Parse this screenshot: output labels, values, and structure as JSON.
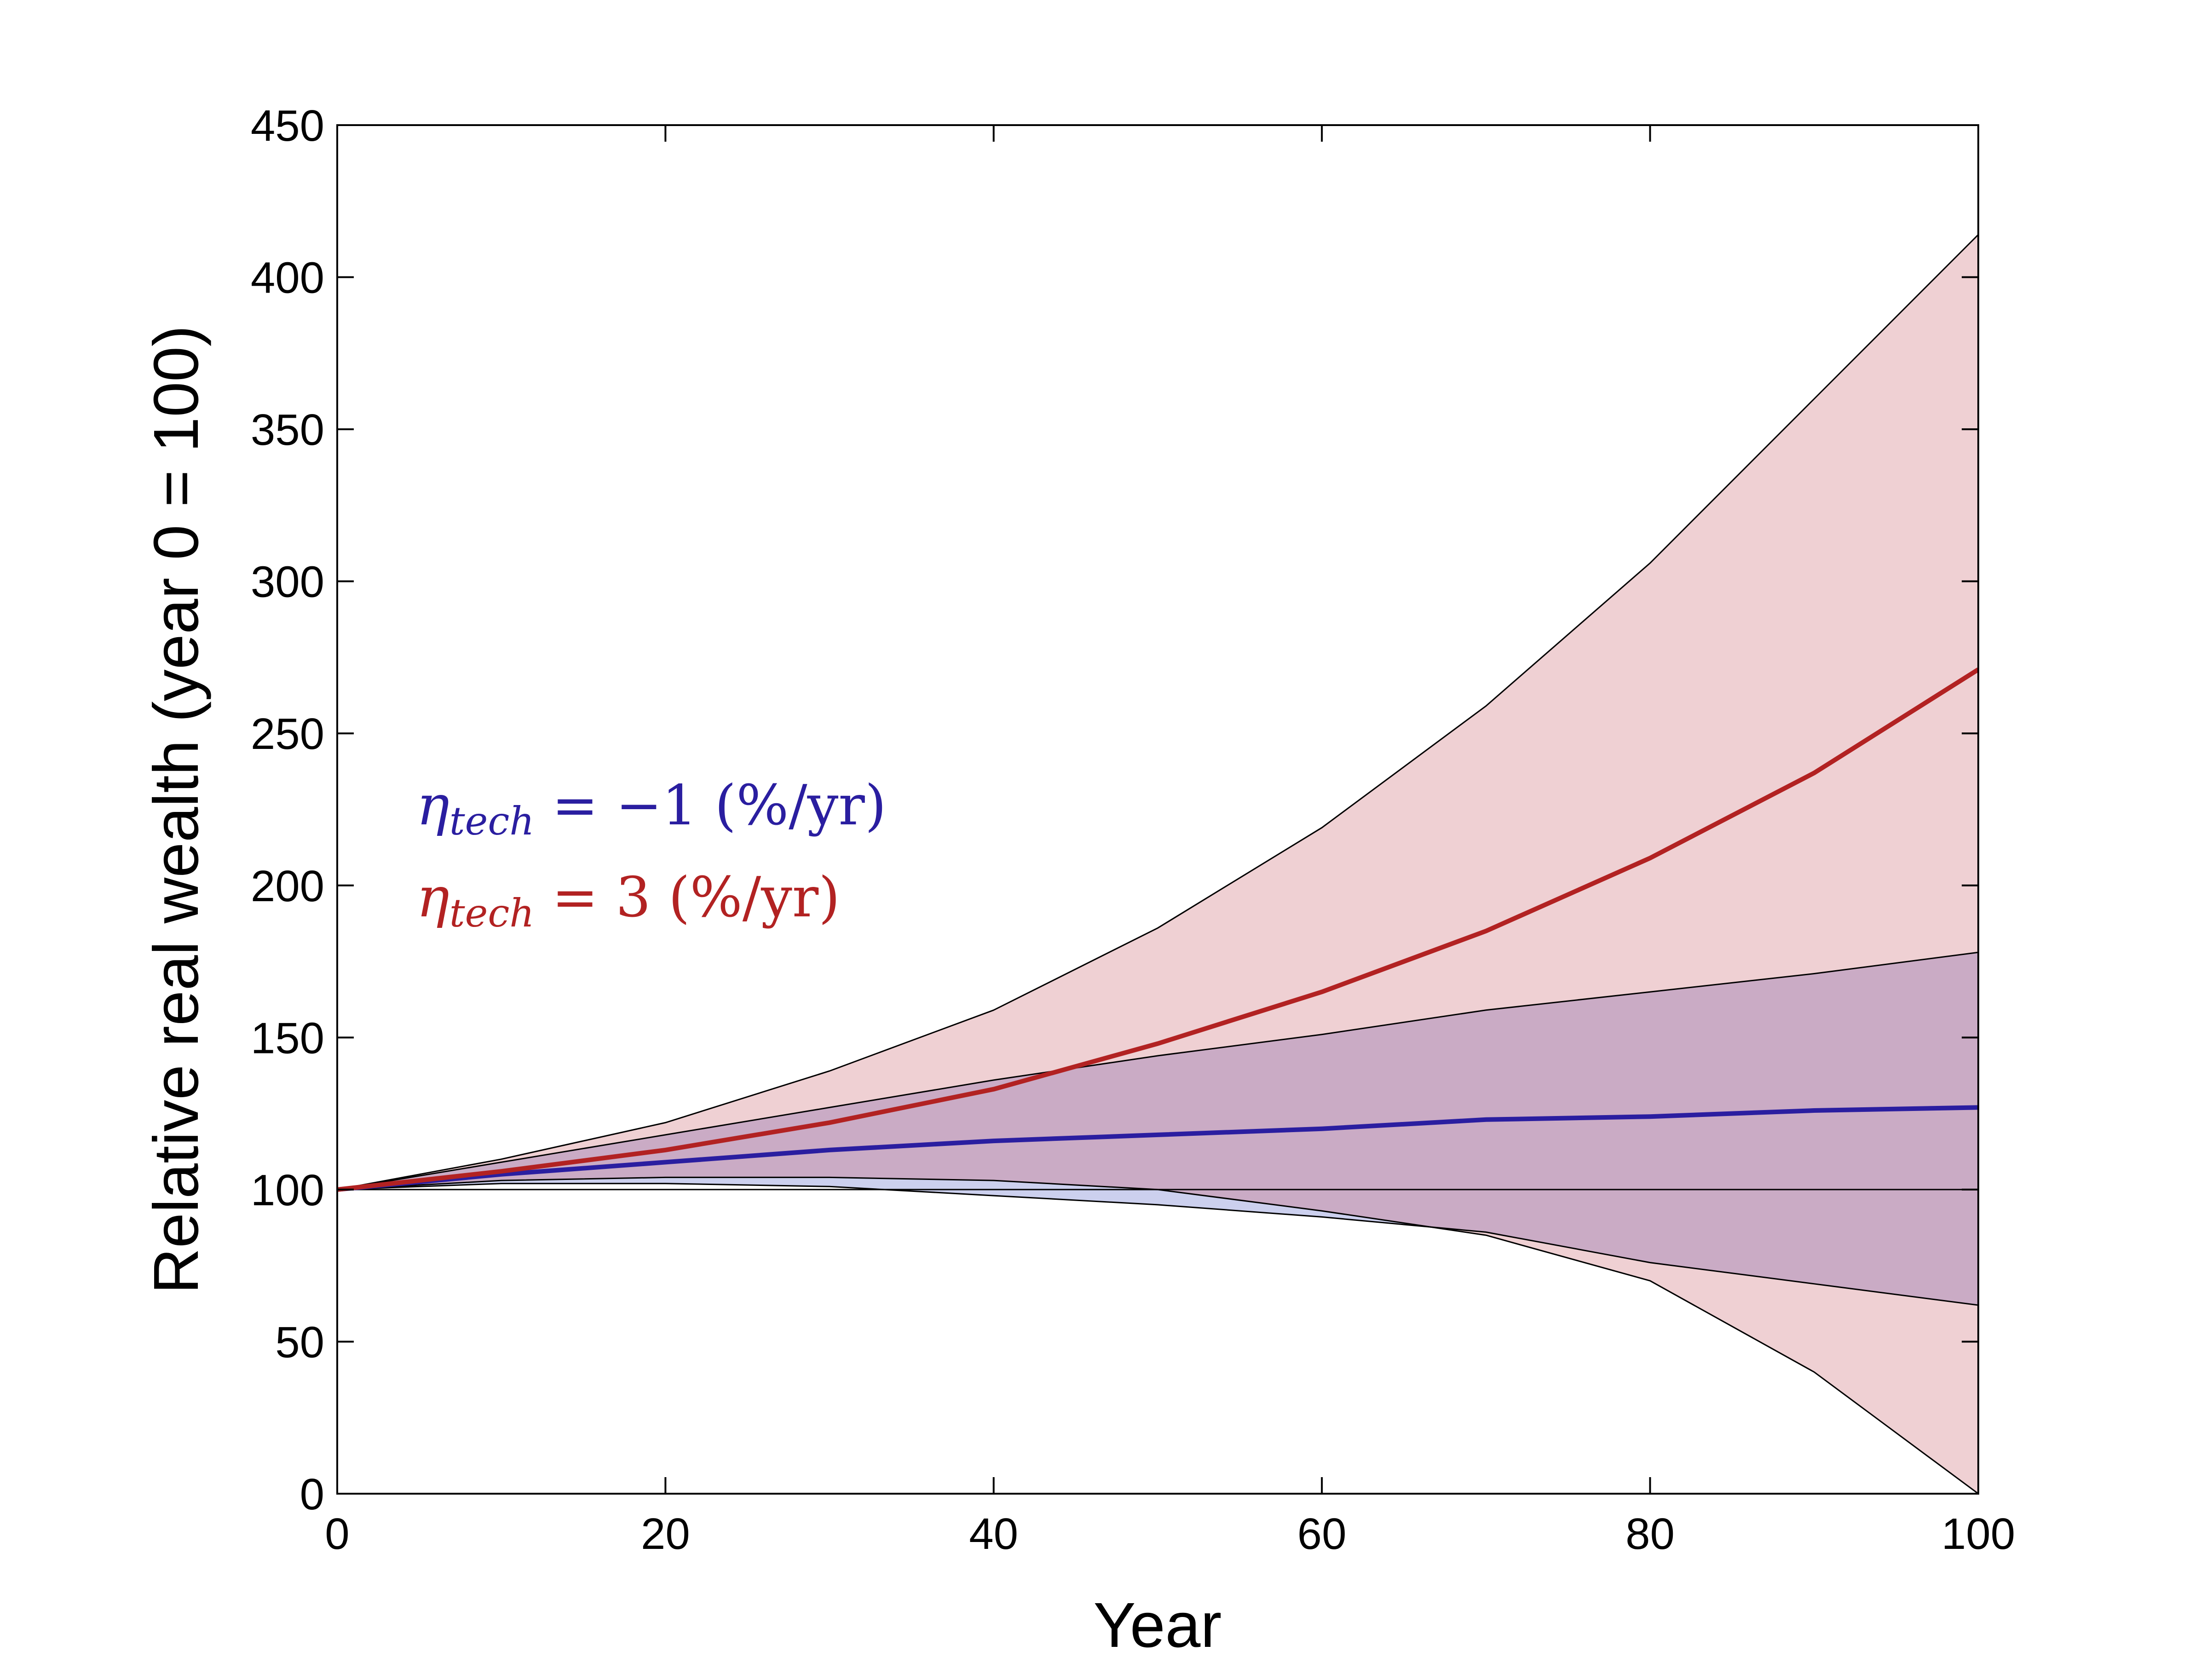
{
  "chart_data": {
    "type": "area",
    "title": "",
    "xlabel": "Year",
    "ylabel": "Relative real wealth (year 0 = 100)",
    "xlim": [
      0,
      100
    ],
    "ylim": [
      0,
      450
    ],
    "xticks": [
      0,
      20,
      40,
      60,
      80,
      100
    ],
    "yticks": [
      0,
      50,
      100,
      150,
      200,
      250,
      300,
      350,
      400,
      450
    ],
    "reference_line": 100,
    "x": [
      0,
      10,
      20,
      30,
      40,
      50,
      60,
      70,
      80,
      90,
      100
    ],
    "series": [
      {
        "name": "eta_tech = 3 (%/yr)",
        "color": "#b22222",
        "band_color": "#efd0d3",
        "median": [
          100,
          106,
          113,
          122,
          133,
          148,
          165,
          185,
          209,
          237,
          271
        ],
        "upper": [
          100,
          110,
          122,
          139,
          159,
          186,
          219,
          259,
          306,
          360,
          414
        ],
        "lower": [
          100,
          103,
          104,
          104,
          103,
          100,
          93,
          85,
          70,
          40,
          0
        ]
      },
      {
        "name": "eta_tech = -1 (%/yr)",
        "color": "#2a1ea0",
        "band_color": "#ccd0ee",
        "overlap_color": "#caabc5",
        "median": [
          100,
          105,
          109,
          113,
          116,
          118,
          120,
          123,
          124,
          126,
          127
        ],
        "upper": [
          100,
          109,
          118,
          127,
          136,
          144,
          151,
          159,
          165,
          171,
          178
        ],
        "lower": [
          100,
          102,
          102,
          101,
          98,
          95,
          91,
          86,
          76,
          69,
          62
        ]
      }
    ],
    "legend": [
      {
        "symbol": "η",
        "subscript": "tech",
        "text": " = −1 (%/yr)",
        "color": "#2a1ea0"
      },
      {
        "symbol": "η",
        "subscript": "tech",
        "text": " = 3 (%/yr)",
        "color": "#b22222"
      }
    ]
  }
}
